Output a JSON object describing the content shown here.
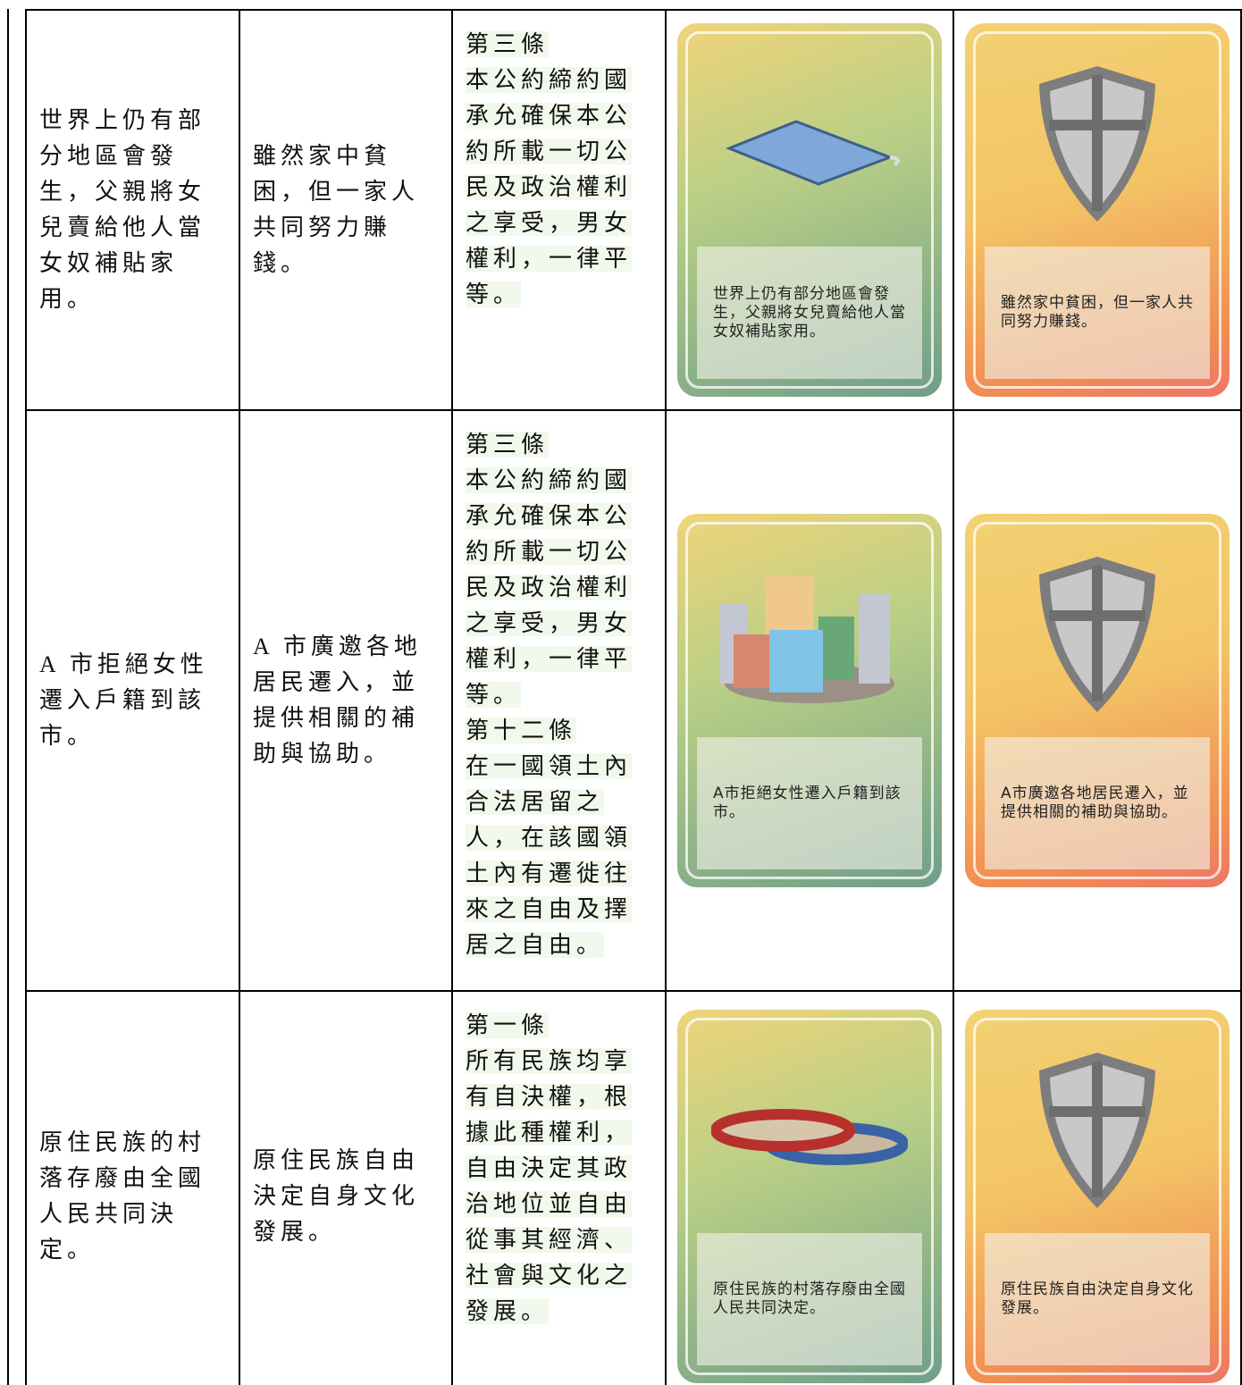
{
  "table": {
    "rows": [
      {
        "scenario": "世界上仍有部分地區會發生，父親將女兒賣給他人當女奴補貼家用。",
        "response": "雖然家中貧困，但一家人共同努力賺錢。",
        "article": [
          "第三條",
          "本公約締約國承允確保本公約所載一切公民及政治權利之享受，男女權利，一律平等。"
        ],
        "left_card": "世界上仍有部分地區會發生，父親將女兒賣給他人當女奴補貼家用。",
        "right_card": "雖然家中貧困，但一家人共同努力賺錢。"
      },
      {
        "scenario": "A 市拒絕女性遷入戶籍到該市。",
        "response": "A 市廣邀各地居民遷入，並提供相關的補助與協助。",
        "article": [
          "第三條",
          "本公約締約國承允確保本公約所載一切公民及政治權利之享受，男女權利，一律平等。",
          "第十二條",
          "在一國領土內合法居留之人，在該國領土內有遷徙往來之自由及擇居之自由。"
        ],
        "left_card": "A市拒絕女性遷入戶籍到該市。",
        "right_card": "A市廣邀各地居民遷入，並提供相關的補助與協助。"
      },
      {
        "scenario": "原住民族的村落存廢由全國人民共同決定。",
        "response": "原住民族自由決定自身文化發展。",
        "article": [
          "第一條",
          "所有民族均享有自決權，根據此種權利，自由決定其政治地位並自由從事其經濟、社會與文化之發展。"
        ],
        "left_card": "原住民族的村落存廢由全國人民共同決定。",
        "right_card": "原住民族自由決定自身文化發展。"
      }
    ]
  }
}
